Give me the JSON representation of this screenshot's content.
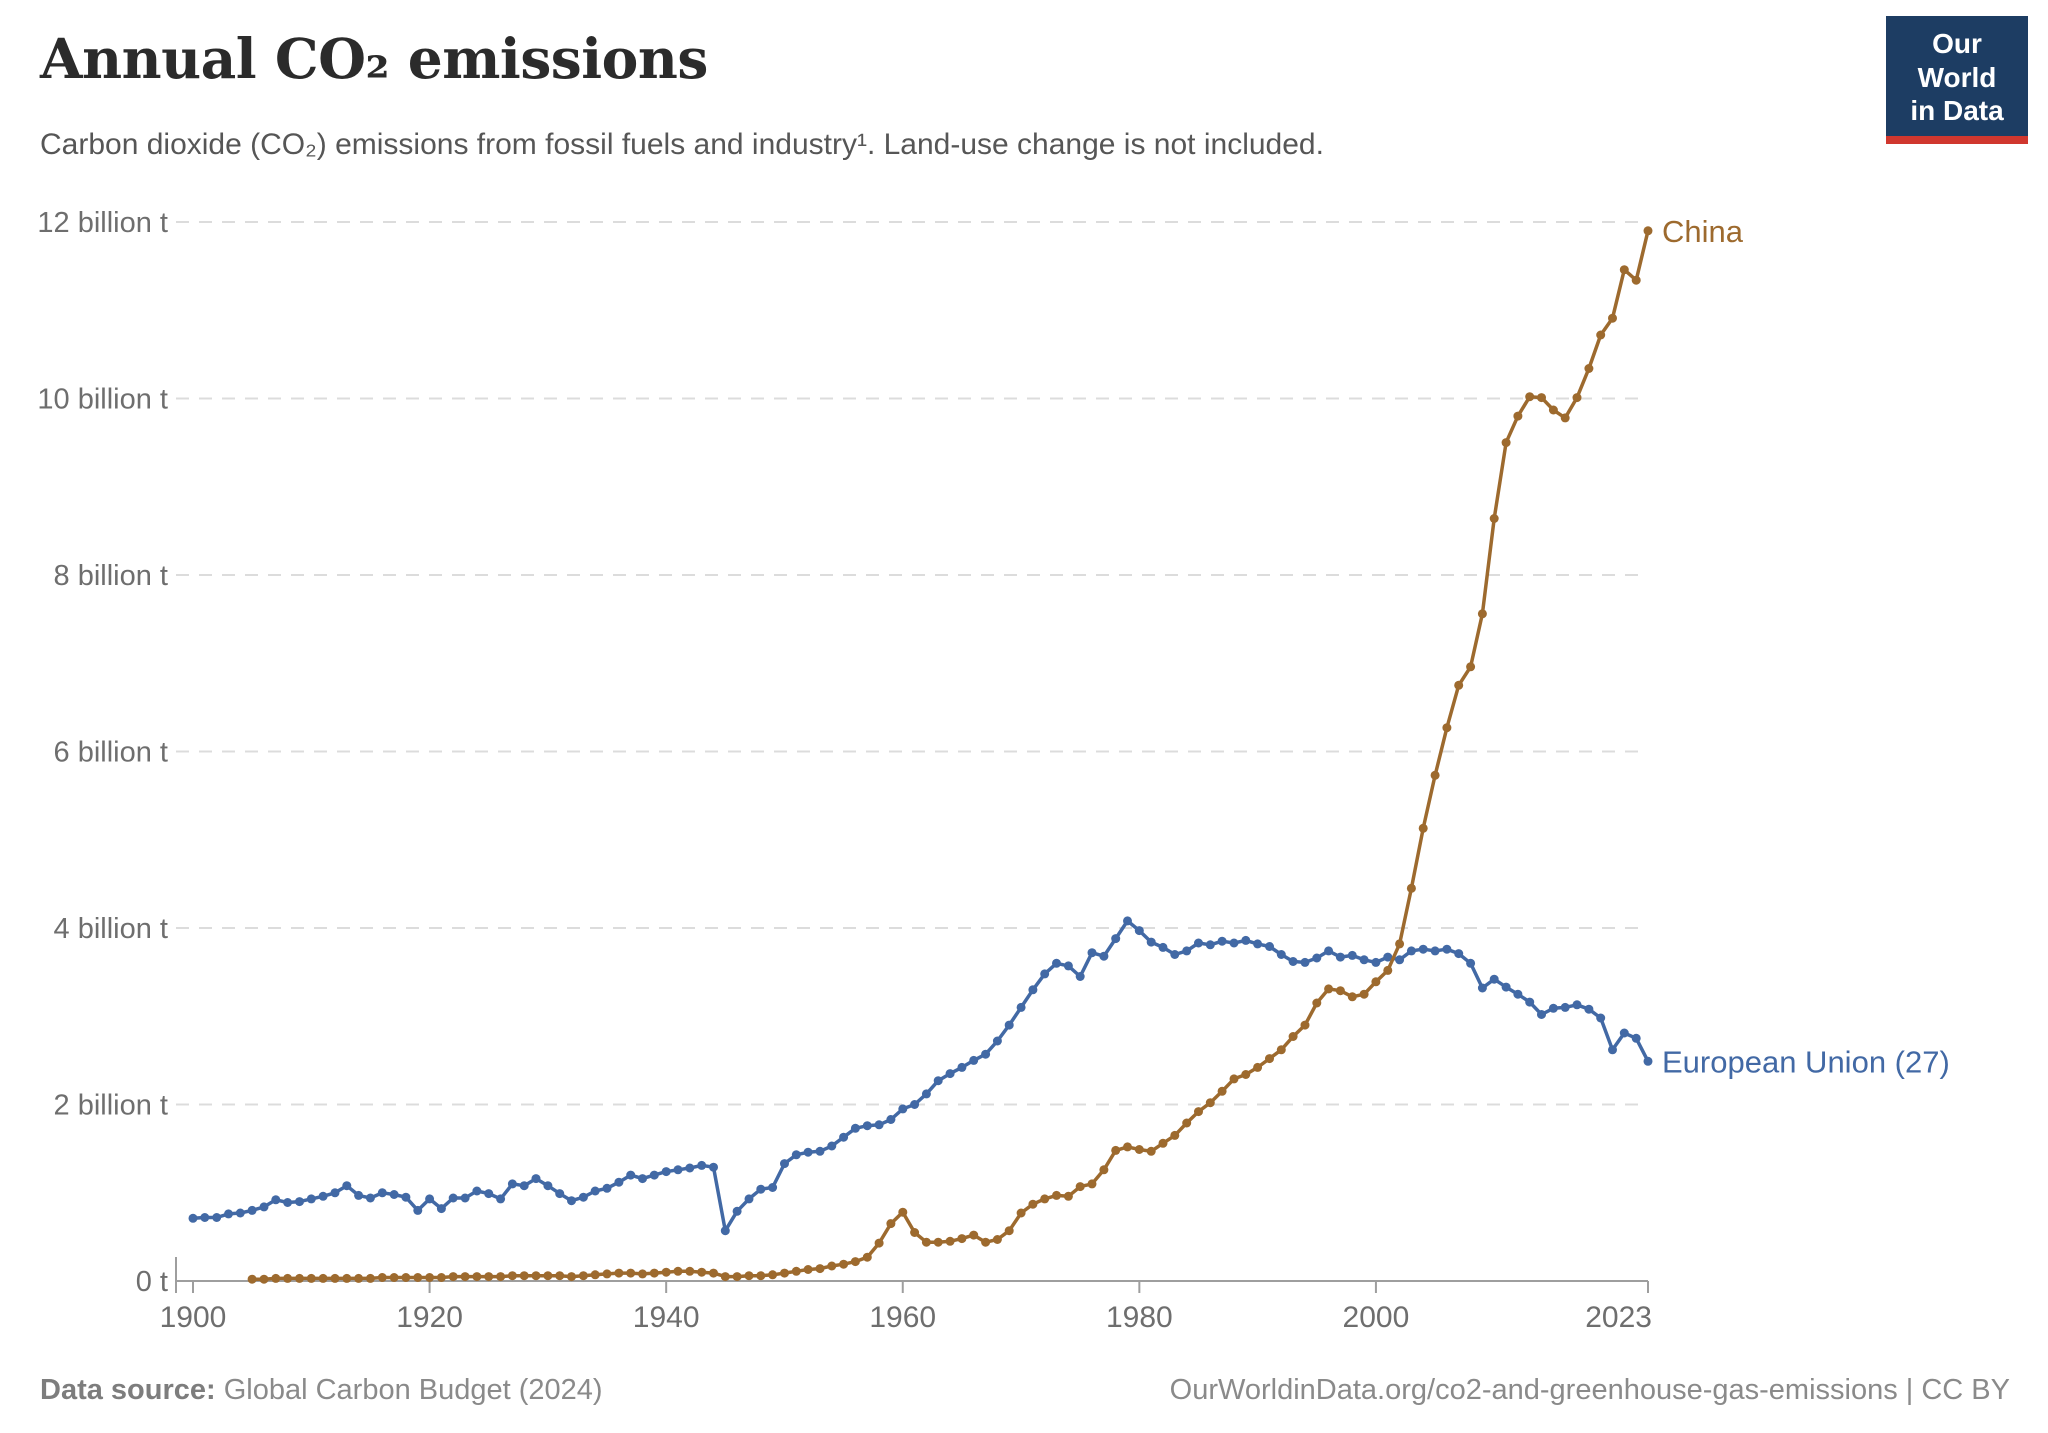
{
  "header": {
    "title": "Annual CO₂ emissions",
    "subtitle": "Carbon dioxide (CO₂) emissions from fossil fuels and industry¹. Land-use change is not included.",
    "logo": {
      "line1": "Our World",
      "line2": "in Data"
    }
  },
  "footer": {
    "source_label": "Data source:",
    "source_value": " Global Carbon Budget (2024)",
    "attribution": "OurWorldinData.org/co2-and-greenhouse-gas-emissions | CC BY"
  },
  "colors": {
    "china_line": "#9D6A2E",
    "eu_line": "#4269A5",
    "logo_navy": "#1d3d63",
    "logo_red": "#d0372e",
    "gridline": "#dcdcdc",
    "axis": "#9e9e9e",
    "axis_label": "#6e6e6e",
    "title_text": "#2b2b2b",
    "subtitle_text": "#565656",
    "footer_text": "#8a8a8a"
  },
  "chart_data": {
    "type": "line",
    "title": "Annual CO₂ emissions",
    "unit": "billion tonnes of CO₂",
    "xlabel": "",
    "ylabel": "",
    "x_axis": {
      "ticks": [
        1900,
        1920,
        1940,
        1960,
        1980,
        2000,
        2023
      ],
      "range": [
        1898.5,
        2023
      ]
    },
    "y_axis": {
      "ticks": [
        0,
        2,
        4,
        6,
        8,
        10,
        12
      ],
      "tick_labels": [
        "0 t",
        "2 billion t",
        "4 billion t",
        "6 billion t",
        "8 billion t",
        "10 billion t",
        "12 billion t"
      ],
      "range": [
        0,
        12
      ],
      "grid": "dashed"
    },
    "legend_position": "line-end-labels",
    "series": [
      {
        "name": "European Union (27)",
        "color": "#4269A5",
        "start_year": 1900,
        "end_year": 2023,
        "values": [
          0.71,
          0.72,
          0.72,
          0.76,
          0.77,
          0.8,
          0.84,
          0.92,
          0.89,
          0.9,
          0.93,
          0.96,
          1.0,
          1.08,
          0.97,
          0.94,
          1.0,
          0.98,
          0.95,
          0.8,
          0.93,
          0.82,
          0.94,
          0.94,
          1.02,
          0.99,
          0.93,
          1.1,
          1.08,
          1.16,
          1.08,
          0.99,
          0.91,
          0.95,
          1.02,
          1.05,
          1.12,
          1.2,
          1.16,
          1.2,
          1.24,
          1.26,
          1.28,
          1.31,
          1.29,
          0.57,
          0.79,
          0.93,
          1.04,
          1.06,
          1.33,
          1.43,
          1.46,
          1.47,
          1.53,
          1.63,
          1.73,
          1.76,
          1.77,
          1.83,
          1.95,
          2.0,
          2.12,
          2.27,
          2.35,
          2.42,
          2.5,
          2.57,
          2.72,
          2.9,
          3.1,
          3.3,
          3.48,
          3.6,
          3.57,
          3.45,
          3.72,
          3.68,
          3.88,
          4.08,
          3.97,
          3.84,
          3.78,
          3.7,
          3.74,
          3.83,
          3.81,
          3.85,
          3.83,
          3.86,
          3.82,
          3.79,
          3.7,
          3.62,
          3.61,
          3.66,
          3.74,
          3.67,
          3.69,
          3.64,
          3.61,
          3.67,
          3.64,
          3.74,
          3.76,
          3.74,
          3.76,
          3.71,
          3.6,
          3.32,
          3.42,
          3.33,
          3.25,
          3.16,
          3.02,
          3.09,
          3.1,
          3.13,
          3.08,
          2.98,
          2.62,
          2.81,
          2.75,
          2.49
        ]
      },
      {
        "name": "China",
        "color": "#9D6A2E",
        "start_year": 1905,
        "end_year": 2023,
        "values": [
          0.02,
          0.02,
          0.03,
          0.03,
          0.03,
          0.03,
          0.03,
          0.03,
          0.03,
          0.03,
          0.03,
          0.04,
          0.04,
          0.04,
          0.04,
          0.04,
          0.04,
          0.05,
          0.05,
          0.05,
          0.05,
          0.05,
          0.06,
          0.06,
          0.06,
          0.06,
          0.06,
          0.05,
          0.06,
          0.07,
          0.08,
          0.09,
          0.09,
          0.08,
          0.09,
          0.1,
          0.11,
          0.11,
          0.1,
          0.09,
          0.05,
          0.05,
          0.06,
          0.06,
          0.07,
          0.09,
          0.11,
          0.13,
          0.14,
          0.17,
          0.19,
          0.22,
          0.27,
          0.43,
          0.65,
          0.78,
          0.55,
          0.44,
          0.44,
          0.45,
          0.48,
          0.52,
          0.44,
          0.47,
          0.57,
          0.77,
          0.87,
          0.93,
          0.97,
          0.96,
          1.07,
          1.1,
          1.26,
          1.48,
          1.52,
          1.49,
          1.47,
          1.56,
          1.65,
          1.79,
          1.92,
          2.02,
          2.15,
          2.29,
          2.34,
          2.42,
          2.52,
          2.62,
          2.77,
          2.9,
          3.15,
          3.31,
          3.29,
          3.22,
          3.25,
          3.39,
          3.52,
          3.82,
          4.45,
          5.13,
          5.73,
          6.27,
          6.75,
          6.96,
          7.56,
          8.64,
          9.5,
          9.8,
          10.02,
          10.01,
          9.87,
          9.78,
          10.01,
          10.34,
          10.72,
          10.91,
          11.46,
          11.34,
          11.9
        ]
      }
    ]
  }
}
